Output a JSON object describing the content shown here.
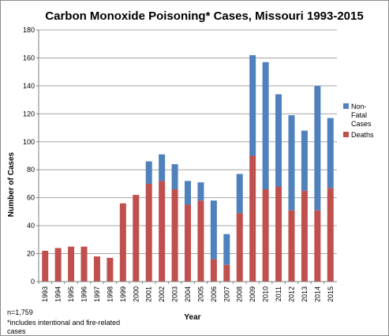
{
  "chart_data": {
    "type": "bar",
    "stacked": true,
    "title": "Carbon Monoxide Poisoning* Cases, Missouri 1993-2015",
    "xlabel": "Year",
    "ylabel": "Number of Cases",
    "ylim": [
      0,
      180
    ],
    "yticks": [
      "0",
      "20",
      "40",
      "60",
      "80",
      "100",
      "120",
      "140",
      "160",
      "180"
    ],
    "ytick_values": [
      0,
      20,
      40,
      60,
      80,
      100,
      120,
      140,
      160,
      180
    ],
    "grid": true,
    "legend_position": "right",
    "categories": [
      "1993",
      "1994",
      "1995",
      "1996",
      "1997",
      "1998",
      "1999",
      "2000",
      "2001",
      "2002",
      "2003",
      "2004",
      "2005",
      "2006",
      "2007",
      "2008",
      "2009",
      "2010",
      "2011",
      "2012",
      "2013",
      "2014",
      "2015"
    ],
    "series": [
      {
        "name": "Deaths",
        "color": "#c0504d",
        "values": [
          22,
          24,
          25,
          25,
          18,
          17,
          56,
          62,
          70,
          72,
          66,
          55,
          58,
          16,
          12,
          49,
          90,
          66,
          68,
          51,
          65,
          51,
          67
        ]
      },
      {
        "name": "Non-Fatal Cases",
        "legend_lines": [
          "Non-",
          "Fatal",
          "Cases"
        ],
        "color": "#4f81bd",
        "values": [
          0,
          0,
          0,
          0,
          0,
          0,
          0,
          0,
          16,
          19,
          18,
          17,
          13,
          42,
          22,
          28,
          72,
          91,
          66,
          68,
          43,
          89,
          50
        ]
      }
    ],
    "notes": [
      "n=1,759",
      "*includes intentional and fire-related",
      "cases"
    ]
  }
}
